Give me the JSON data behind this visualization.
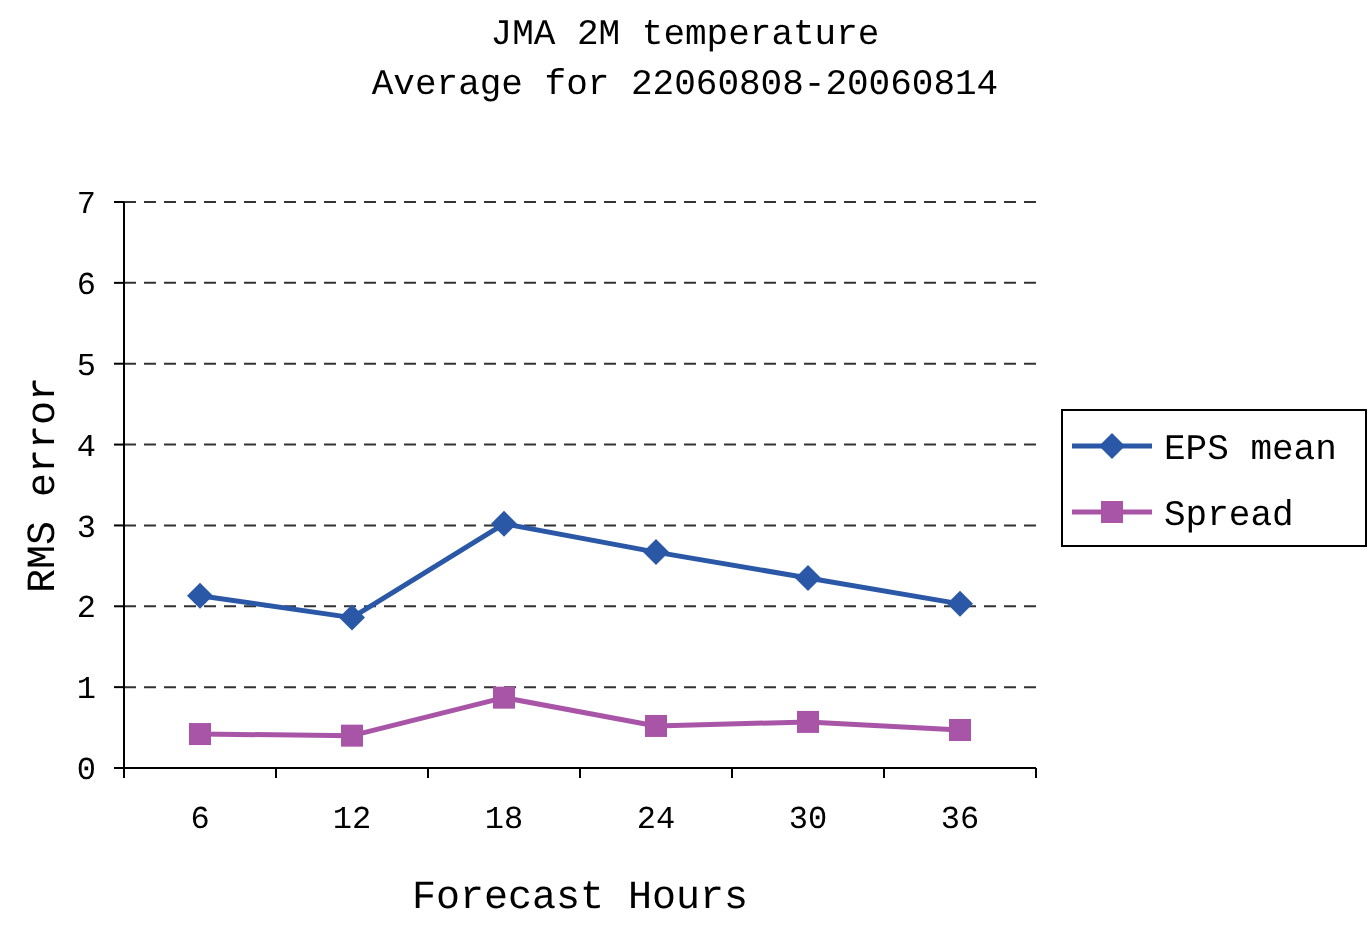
{
  "chart_data": {
    "type": "line",
    "title": "JMA 2M temperature",
    "subtitle": "Average for 22060808-20060814",
    "xlabel": "Forecast Hours",
    "ylabel": "RMS error",
    "categories": [
      "6",
      "12",
      "18",
      "24",
      "30",
      "36"
    ],
    "series": [
      {
        "name": "EPS mean",
        "color": "#2b58a6",
        "marker": "diamond",
        "values": [
          2.13,
          1.86,
          3.02,
          2.67,
          2.35,
          2.03
        ]
      },
      {
        "name": "Spread",
        "color": "#a855a8",
        "marker": "square",
        "values": [
          0.42,
          0.4,
          0.87,
          0.52,
          0.57,
          0.47
        ]
      }
    ],
    "ylim": [
      0,
      7
    ],
    "yticks": [
      0,
      1,
      2,
      3,
      4,
      5,
      6,
      7
    ],
    "grid": "y",
    "legend": "right",
    "line_style": "solid"
  }
}
